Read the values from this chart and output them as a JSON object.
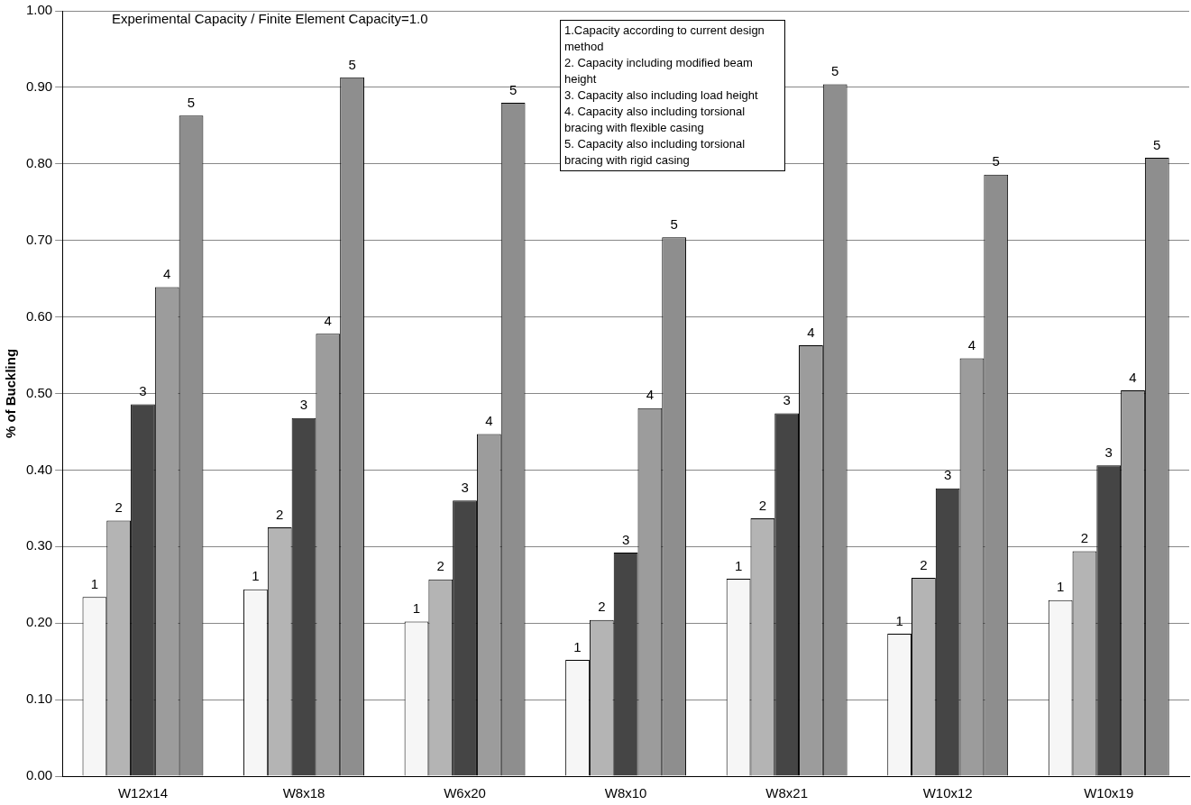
{
  "chart_data": {
    "type": "bar",
    "ylabel": "% of Buckling",
    "categories": [
      "W12x14",
      "W8x18",
      "W6x20",
      "W8x10",
      "W8x21",
      "W10x12",
      "W10x19"
    ],
    "series": [
      {
        "name": "1",
        "color": "#f6f6f6",
        "values": [
          0.234,
          0.244,
          0.202,
          0.152,
          0.258,
          0.186,
          0.23
        ]
      },
      {
        "name": "2",
        "color": "#b4b4b4",
        "values": [
          0.334,
          0.325,
          0.257,
          0.204,
          0.337,
          0.259,
          0.294
        ]
      },
      {
        "name": "3",
        "color": "#454545",
        "values": [
          0.486,
          0.468,
          0.36,
          0.292,
          0.474,
          0.376,
          0.406
        ]
      },
      {
        "name": "4",
        "color": "#9c9c9c",
        "values": [
          0.639,
          0.578,
          0.447,
          0.481,
          0.563,
          0.546,
          0.504
        ]
      },
      {
        "name": "5",
        "color": "#8e8e8e",
        "values": [
          0.863,
          0.913,
          0.88,
          0.704,
          0.904,
          0.786,
          0.808
        ]
      }
    ],
    "ylim": [
      0,
      1
    ],
    "yticks": [
      {
        "value": 0,
        "label": "0.00"
      },
      {
        "value": 0.1,
        "label": "0.10"
      },
      {
        "value": 0.2,
        "label": "0.20"
      },
      {
        "value": 0.3,
        "label": "0.30"
      },
      {
        "value": 0.4,
        "label": "0.40"
      },
      {
        "value": 0.5,
        "label": "0.50"
      },
      {
        "value": 0.6,
        "label": "0.60"
      },
      {
        "value": 0.7,
        "label": "0.70"
      },
      {
        "value": 0.8,
        "label": "0.80"
      },
      {
        "value": 0.9,
        "label": "0.90"
      },
      {
        "value": 1,
        "label": "1.00"
      }
    ],
    "grid": "y",
    "legend": false,
    "annotations": [
      "Experimental Capacity / Finite Element Capacity=1.0",
      "1.Capacity according to current design method",
      "2. Capacity including modified beam height",
      "3. Capacity also including load height",
      "4. Capacity also including torsional bracing with flexible casing",
      "5. Capacity also including torsional bracing with rigid casing"
    ]
  }
}
